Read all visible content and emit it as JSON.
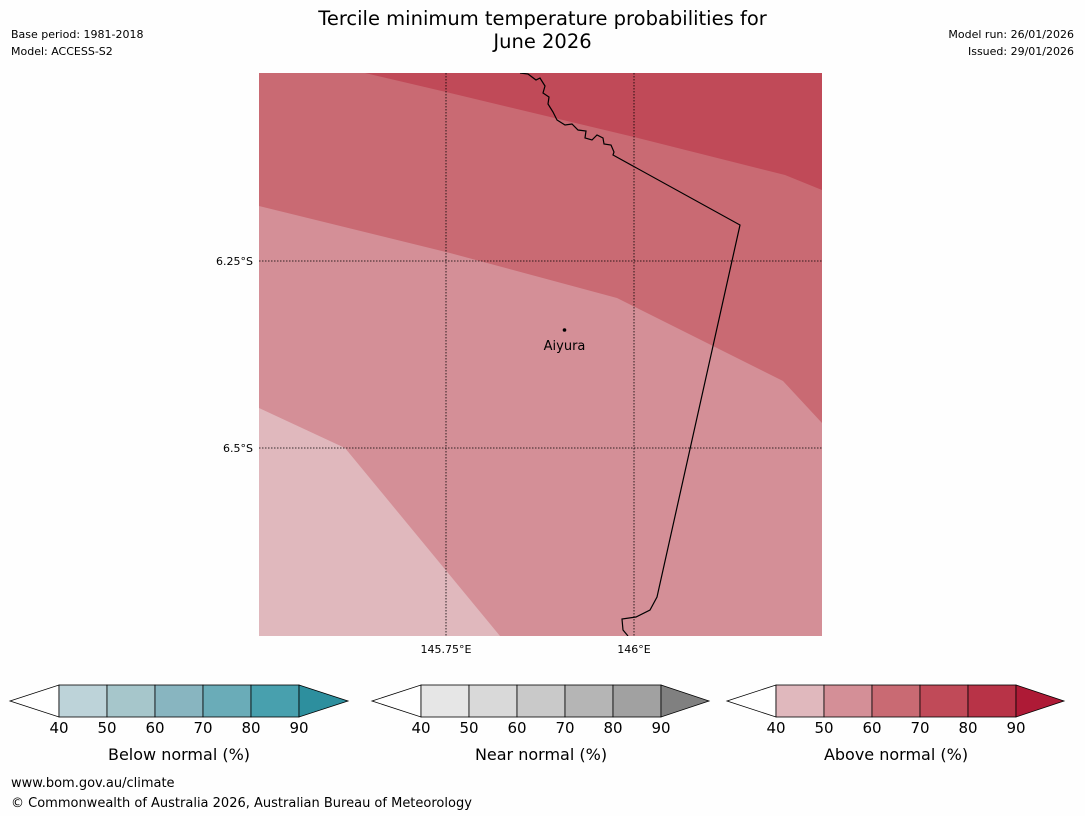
{
  "header": {
    "title_line1": "Tercile minimum temperature probabilities for",
    "title_line2": "June 2026",
    "base_period": "Base period: 1981-2018",
    "model": "Model: ACCESS-S2",
    "model_run": "Model run: 26/01/2026",
    "issued": "Issued: 29/01/2026"
  },
  "map": {
    "lat_labels": [
      "6.25°S",
      "6.5°S"
    ],
    "lon_labels": [
      "145.75°E",
      "146°E"
    ],
    "place_label": "Aiyura",
    "colors": {
      "above_40_50": "#e0b8bd",
      "above_50_60": "#d48f97",
      "above_60_70": "#c96a73",
      "above_70_80": "#c04a58"
    }
  },
  "legend": {
    "ticks": [
      "40",
      "50",
      "60",
      "70",
      "80",
      "90"
    ],
    "below": {
      "label": "Below normal (%)",
      "colors": [
        "#bdd3d9",
        "#a6c6cb",
        "#88b5c0",
        "#6aacb8",
        "#48a0ae",
        "#2d8f9e"
      ]
    },
    "near": {
      "label": "Near normal (%)",
      "colors": [
        "#e6e6e6",
        "#d9d9d9",
        "#c9c9c9",
        "#b5b5b5",
        "#a1a1a1",
        "#808080"
      ]
    },
    "above": {
      "label": "Above normal (%)",
      "colors": [
        "#e0b8bd",
        "#d48f97",
        "#c96a73",
        "#c04a58",
        "#b83347",
        "#ae1a36"
      ]
    }
  },
  "footer": {
    "url": "www.bom.gov.au/climate",
    "copyright": "© Commonwealth of Australia 2026, Australian Bureau of Meteorology"
  }
}
